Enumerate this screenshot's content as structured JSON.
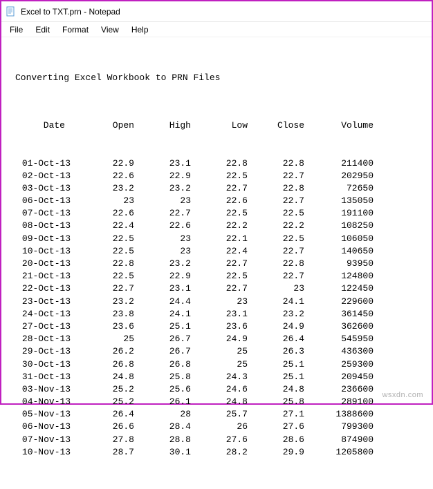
{
  "window": {
    "title": "Excel to TXT.prn - Notepad"
  },
  "menu": {
    "file": "File",
    "edit": "Edit",
    "format": "Format",
    "view": "View",
    "help": "Help"
  },
  "content": {
    "heading": "Converting Excel Workbook to PRN Files",
    "columns": {
      "date": "Date",
      "open": "Open",
      "high": "High",
      "low": "Low",
      "close": "Close",
      "volume": "Volume"
    },
    "rows": [
      {
        "date": "01-Oct-13",
        "open": "22.9",
        "high": "23.1",
        "low": "22.8",
        "close": "22.8",
        "volume": "211400"
      },
      {
        "date": "02-Oct-13",
        "open": "22.6",
        "high": "22.9",
        "low": "22.5",
        "close": "22.7",
        "volume": "202950"
      },
      {
        "date": "03-Oct-13",
        "open": "23.2",
        "high": "23.2",
        "low": "22.7",
        "close": "22.8",
        "volume": "72650"
      },
      {
        "date": "06-Oct-13",
        "open": "23",
        "high": "23",
        "low": "22.6",
        "close": "22.7",
        "volume": "135050"
      },
      {
        "date": "07-Oct-13",
        "open": "22.6",
        "high": "22.7",
        "low": "22.5",
        "close": "22.5",
        "volume": "191100"
      },
      {
        "date": "08-Oct-13",
        "open": "22.4",
        "high": "22.6",
        "low": "22.2",
        "close": "22.2",
        "volume": "108250"
      },
      {
        "date": "09-Oct-13",
        "open": "22.5",
        "high": "23",
        "low": "22.1",
        "close": "22.5",
        "volume": "106050"
      },
      {
        "date": "10-Oct-13",
        "open": "22.5",
        "high": "23",
        "low": "22.4",
        "close": "22.7",
        "volume": "140650"
      },
      {
        "date": "20-Oct-13",
        "open": "22.8",
        "high": "23.2",
        "low": "22.7",
        "close": "22.8",
        "volume": "93950"
      },
      {
        "date": "21-Oct-13",
        "open": "22.5",
        "high": "22.9",
        "low": "22.5",
        "close": "22.7",
        "volume": "124800"
      },
      {
        "date": "22-Oct-13",
        "open": "22.7",
        "high": "23.1",
        "low": "22.7",
        "close": "23",
        "volume": "122450"
      },
      {
        "date": "23-Oct-13",
        "open": "23.2",
        "high": "24.4",
        "low": "23",
        "close": "24.1",
        "volume": "229600"
      },
      {
        "date": "24-Oct-13",
        "open": "23.8",
        "high": "24.1",
        "low": "23.1",
        "close": "23.2",
        "volume": "361450"
      },
      {
        "date": "27-Oct-13",
        "open": "23.6",
        "high": "25.1",
        "low": "23.6",
        "close": "24.9",
        "volume": "362600"
      },
      {
        "date": "28-Oct-13",
        "open": "25",
        "high": "26.7",
        "low": "24.9",
        "close": "26.4",
        "volume": "545950"
      },
      {
        "date": "29-Oct-13",
        "open": "26.2",
        "high": "26.7",
        "low": "25",
        "close": "26.3",
        "volume": "436300"
      },
      {
        "date": "30-Oct-13",
        "open": "26.8",
        "high": "26.8",
        "low": "25",
        "close": "25.1",
        "volume": "259300"
      },
      {
        "date": "31-Oct-13",
        "open": "24.8",
        "high": "25.8",
        "low": "24.3",
        "close": "25.1",
        "volume": "209450"
      },
      {
        "date": "03-Nov-13",
        "open": "25.2",
        "high": "25.6",
        "low": "24.6",
        "close": "24.8",
        "volume": "236600"
      },
      {
        "date": "04-Nov-13",
        "open": "25.2",
        "high": "26.1",
        "low": "24.8",
        "close": "25.8",
        "volume": "289100"
      },
      {
        "date": "05-Nov-13",
        "open": "26.4",
        "high": "28",
        "low": "25.7",
        "close": "27.1",
        "volume": "1388600"
      },
      {
        "date": "06-Nov-13",
        "open": "26.6",
        "high": "28.4",
        "low": "26",
        "close": "27.6",
        "volume": "799300"
      },
      {
        "date": "07-Nov-13",
        "open": "27.8",
        "high": "28.8",
        "low": "27.6",
        "close": "28.6",
        "volume": "874900"
      },
      {
        "date": "10-Nov-13",
        "open": "28.7",
        "high": "30.1",
        "low": "28.2",
        "close": "29.9",
        "volume": "1205800"
      }
    ]
  },
  "watermark": "wsxdn.com",
  "colors": {
    "border": "#c020c0",
    "background": "#ffffff",
    "text": "#000000",
    "watermark": "#b0b0b0"
  }
}
